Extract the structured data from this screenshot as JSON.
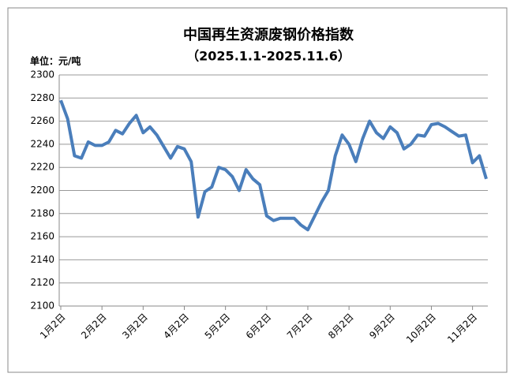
{
  "chart_data": {
    "type": "line",
    "title": "中国再生资源废钢价格指数",
    "subtitle": "（2025.1.1-2025.11.6）",
    "y_label": "单位：元/吨",
    "categories": [
      "1月2日",
      null,
      null,
      null,
      null,
      null,
      "2月2日",
      null,
      null,
      null,
      null,
      null,
      "3月2日",
      null,
      null,
      null,
      null,
      null,
      "4月2日",
      null,
      null,
      null,
      null,
      null,
      "5月2日",
      null,
      null,
      null,
      null,
      null,
      "6月2日",
      null,
      null,
      null,
      null,
      null,
      "7月2日",
      null,
      null,
      null,
      null,
      null,
      "8月2日",
      null,
      null,
      null,
      null,
      null,
      "9月2日",
      null,
      null,
      null,
      null,
      null,
      "10月2日",
      null,
      null,
      null,
      null,
      null,
      "11月2日",
      null,
      null
    ],
    "series": [
      {
        "name": "废钢价格指数",
        "color": "#4a7ebb",
        "values": [
          2278,
          2262,
          2230,
          2228,
          2242,
          2239,
          2239,
          2242,
          2252,
          2249,
          2258,
          2265,
          2250,
          2255,
          2248,
          2238,
          2228,
          2238,
          2236,
          2225,
          2177,
          2199,
          2203,
          2220,
          2218,
          2212,
          2200,
          2218,
          2210,
          2205,
          2178,
          2174,
          2176,
          2176,
          2176,
          2170,
          2166,
          2178,
          2190,
          2200,
          2230,
          2248,
          2240,
          2225,
          2245,
          2260,
          2250,
          2245,
          2255,
          2250,
          2236,
          2240,
          2248,
          2247,
          2257,
          2258,
          2255,
          2251,
          2247,
          2248,
          2224,
          2230,
          2210
        ]
      }
    ],
    "ylim": [
      2100,
      2300
    ],
    "yticks": [
      2100,
      2120,
      2140,
      2160,
      2180,
      2200,
      2220,
      2240,
      2260,
      2280,
      2300
    ],
    "grid": true
  }
}
